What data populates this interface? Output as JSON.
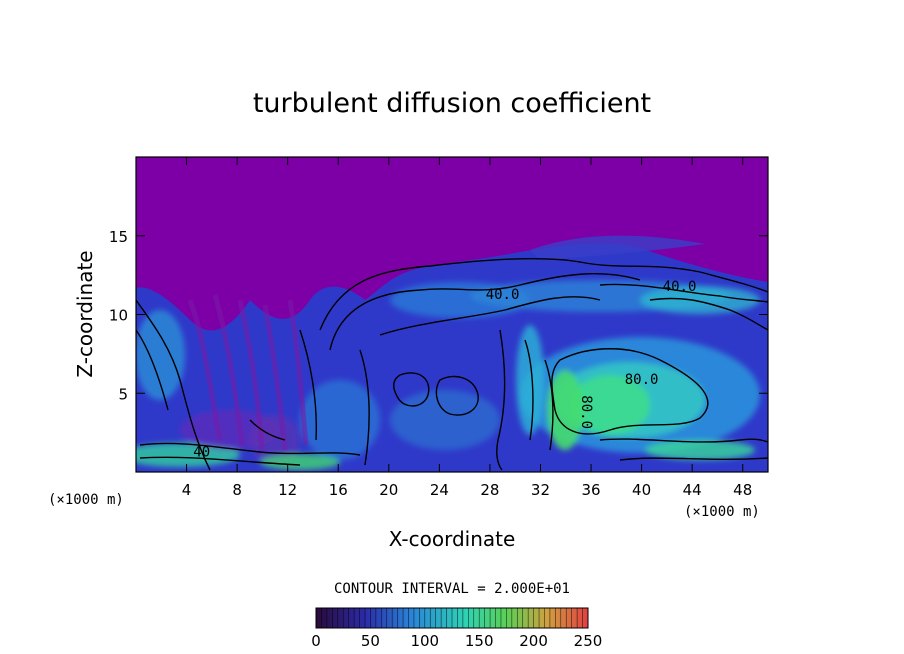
{
  "chart_data": {
    "type": "heatmap",
    "title": "turbulent diffusion coefficient",
    "xlabel": "X-coordinate",
    "ylabel": "Z-coordinate",
    "x_unit_label": "(×1000 m)",
    "x_unit_label_right": "(×1000 m)",
    "x_ticks": [
      4,
      8,
      12,
      16,
      20,
      24,
      28,
      32,
      36,
      40,
      44,
      48
    ],
    "y_ticks": [
      5,
      10,
      15
    ],
    "xlim": [
      0,
      50
    ],
    "ylim": [
      0,
      20
    ],
    "contour_interval_text": "CONTOUR INTERVAL = 2.000E+01",
    "contour_interval": 20,
    "colorbar": {
      "min": 0,
      "max": 250,
      "ticks": [
        0,
        50,
        100,
        150,
        200,
        250
      ]
    },
    "contour_labels": [
      {
        "text": "40.0",
        "x": 29.0,
        "y": 11.0,
        "rotate": 0
      },
      {
        "text": "40.0",
        "x": 43.0,
        "y": 11.5,
        "rotate": 0
      },
      {
        "text": "80.0",
        "x": 40.0,
        "y": 5.6,
        "rotate": 0
      },
      {
        "text": "80.0",
        "x": 35.3,
        "y": 3.8,
        "rotate": 90
      },
      {
        "text": "40",
        "x": 5.2,
        "y": 1.0,
        "rotate": 0
      }
    ],
    "colors": {
      "background_field": "#7d00a6",
      "low": "#2e2fc2",
      "mid": "#2a8ad6",
      "high": "#38e088"
    }
  }
}
